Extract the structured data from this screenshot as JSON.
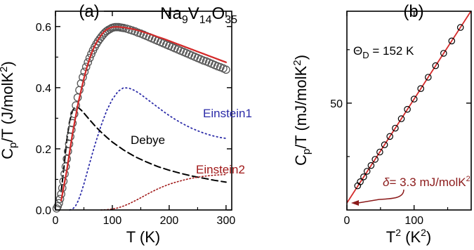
{
  "chart_data": [
    {
      "type": "scatter",
      "panel_label": "(a)",
      "title": {
        "base": "Na",
        "parts": [
          [
            "9",
            "V"
          ],
          [
            "14",
            "O"
          ],
          [
            "35",
            ""
          ]
        ]
      },
      "xlabel": {
        "main": "T (K)"
      },
      "ylabel": {
        "main": "C",
        "sub": "p",
        "rest": "/T (J/molK",
        "sup": "2",
        "end": ")"
      },
      "xlim": [
        0,
        310
      ],
      "ylim": [
        0,
        0.65
      ],
      "xticks": [
        0,
        100,
        200,
        300
      ],
      "yticks": [
        0.0,
        0.2,
        0.4,
        0.6
      ],
      "xtick_labels": [
        "0",
        "100",
        "200",
        "300"
      ],
      "ytick_labels": [
        "0.0",
        "0.2",
        "0.4",
        "0.6"
      ],
      "colors": {
        "data": "#555555",
        "fit": "#d42a2a",
        "einstein1": "#2b2ba8",
        "debye": "#000000",
        "einstein2": "#a01818",
        "title_line": "#000000"
      },
      "series": [
        {
          "role": "measured",
          "style": "open-circles",
          "x": [
            2,
            4,
            6,
            8,
            10,
            12,
            14,
            16,
            18,
            20,
            22,
            24,
            26,
            28,
            30,
            33,
            36,
            39,
            42,
            45,
            48,
            51,
            54,
            57,
            60,
            63,
            66,
            69,
            72,
            75,
            78,
            81,
            84,
            87,
            90,
            93,
            96,
            99,
            102,
            105,
            108,
            111,
            114,
            117,
            120,
            125,
            130,
            135,
            140,
            145,
            150,
            155,
            160,
            165,
            170,
            175,
            180,
            185,
            190,
            195,
            200,
            205,
            210,
            215,
            220,
            225,
            230,
            235,
            240,
            245,
            250,
            255,
            260,
            265,
            270,
            275,
            280,
            285,
            290,
            295,
            300
          ],
          "y": [
            0.005,
            0.012,
            0.022,
            0.036,
            0.052,
            0.072,
            0.094,
            0.118,
            0.142,
            0.167,
            0.192,
            0.216,
            0.24,
            0.262,
            0.284,
            0.314,
            0.342,
            0.368,
            0.392,
            0.414,
            0.434,
            0.452,
            0.468,
            0.483,
            0.497,
            0.51,
            0.522,
            0.533,
            0.543,
            0.552,
            0.56,
            0.567,
            0.574,
            0.58,
            0.585,
            0.589,
            0.592,
            0.595,
            0.597,
            0.598,
            0.598,
            0.598,
            0.597,
            0.596,
            0.595,
            0.593,
            0.59,
            0.587,
            0.584,
            0.58,
            0.577,
            0.573,
            0.569,
            0.565,
            0.561,
            0.557,
            0.553,
            0.549,
            0.545,
            0.541,
            0.537,
            0.533,
            0.529,
            0.525,
            0.521,
            0.517,
            0.513,
            0.509,
            0.505,
            0.501,
            0.497,
            0.493,
            0.489,
            0.486,
            0.482,
            0.478,
            0.474,
            0.47,
            0.467,
            0.463,
            0.459
          ]
        },
        {
          "role": "fit",
          "style": "solid",
          "x": [
            10,
            15,
            20,
            25,
            30,
            35,
            40,
            45,
            50,
            55,
            60,
            65,
            70,
            75,
            80,
            85,
            90,
            95,
            100,
            105,
            110,
            120,
            130,
            140,
            150,
            160,
            170,
            180,
            190,
            200,
            210,
            220,
            230,
            240,
            250,
            260,
            270,
            280,
            290,
            300
          ],
          "y": [
            0.03,
            0.08,
            0.13,
            0.19,
            0.25,
            0.3,
            0.35,
            0.39,
            0.43,
            0.465,
            0.495,
            0.52,
            0.54,
            0.557,
            0.571,
            0.582,
            0.59,
            0.595,
            0.598,
            0.599,
            0.599,
            0.597,
            0.594,
            0.59,
            0.585,
            0.579,
            0.573,
            0.566,
            0.56,
            0.553,
            0.546,
            0.539,
            0.532,
            0.525,
            0.518,
            0.511,
            0.504,
            0.497,
            0.49,
            0.483
          ]
        },
        {
          "role": "component",
          "style": "dotted",
          "label": "Einstein1",
          "x": [
            25,
            30,
            35,
            40,
            45,
            50,
            55,
            60,
            65,
            70,
            80,
            90,
            100,
            110,
            120,
            130,
            140,
            150,
            160,
            170,
            180,
            190,
            200,
            210,
            220,
            230,
            240,
            250,
            260,
            270,
            280,
            290,
            300
          ],
          "y": [
            0.0,
            0.003,
            0.012,
            0.03,
            0.055,
            0.085,
            0.118,
            0.152,
            0.185,
            0.217,
            0.275,
            0.325,
            0.362,
            0.388,
            0.4,
            0.398,
            0.39,
            0.378,
            0.364,
            0.35,
            0.336,
            0.322,
            0.309,
            0.297,
            0.286,
            0.276,
            0.267,
            0.259,
            0.252,
            0.246,
            0.241,
            0.237,
            0.234
          ]
        },
        {
          "role": "component",
          "style": "dashed",
          "label": "Debye",
          "x": [
            10,
            15,
            20,
            25,
            30,
            35,
            40,
            45,
            50,
            60,
            70,
            80,
            90,
            100,
            120,
            140,
            160,
            180,
            200,
            220,
            240,
            260,
            280,
            300
          ],
          "y": [
            0.06,
            0.14,
            0.23,
            0.29,
            0.325,
            0.338,
            0.335,
            0.327,
            0.317,
            0.295,
            0.274,
            0.255,
            0.238,
            0.222,
            0.196,
            0.174,
            0.157,
            0.142,
            0.13,
            0.12,
            0.111,
            0.104,
            0.097,
            0.091
          ]
        },
        {
          "role": "component",
          "style": "dotted",
          "label": "Einstein2",
          "x": [
            80,
            90,
            100,
            110,
            120,
            130,
            140,
            150,
            160,
            170,
            180,
            190,
            200,
            210,
            220,
            230,
            240,
            250,
            260,
            270,
            280,
            290,
            300
          ],
          "y": [
            0.0,
            0.001,
            0.003,
            0.007,
            0.013,
            0.021,
            0.03,
            0.04,
            0.05,
            0.06,
            0.069,
            0.077,
            0.084,
            0.09,
            0.095,
            0.1,
            0.104,
            0.107,
            0.11,
            0.112,
            0.114,
            0.115,
            0.116
          ]
        }
      ]
    },
    {
      "type": "scatter",
      "panel_label": "(b)",
      "xlabel": {
        "main": "T",
        "sup": "2",
        "end": " (K",
        "sup2": "2",
        "end2": ")"
      },
      "ylabel": {
        "main": "C",
        "sub": "p",
        "rest": "/T (mJ/molK",
        "sup": "2",
        "end": ")"
      },
      "xlim": [
        0,
        185
      ],
      "ylim": [
        0,
        93
      ],
      "xticks": [
        0,
        100
      ],
      "yticks": [
        50
      ],
      "xtick_labels": [
        "0",
        "100"
      ],
      "ytick_labels": [
        "50"
      ],
      "colors": {
        "data": "#000000",
        "fit": "#d42a2a",
        "annotation": "#8b1a1a",
        "theta": "#000000"
      },
      "annotations": {
        "theta": {
          "main": "Θ",
          "sub": "D",
          "rest": " = 152 K"
        },
        "delta": {
          "main": "δ",
          "rest": "= 3.3 mJ/molK",
          "sup": "2"
        }
      },
      "fit": {
        "intercept": 3.3,
        "slope": 0.486
      },
      "series": [
        {
          "role": "measured",
          "style": "open-circles",
          "x": [
            16,
            20,
            25,
            30,
            36,
            42,
            49,
            56,
            64,
            72,
            81,
            90,
            100,
            110,
            121,
            132,
            144,
            156,
            169
          ],
          "y": [
            11.3,
            13.2,
            15.5,
            18.1,
            20.8,
            23.7,
            27.1,
            30.5,
            34.4,
            38.3,
            42.7,
            47.1,
            51.9,
            56.8,
            62.1,
            67.5,
            73.3,
            79.1,
            85.4
          ]
        }
      ]
    }
  ]
}
